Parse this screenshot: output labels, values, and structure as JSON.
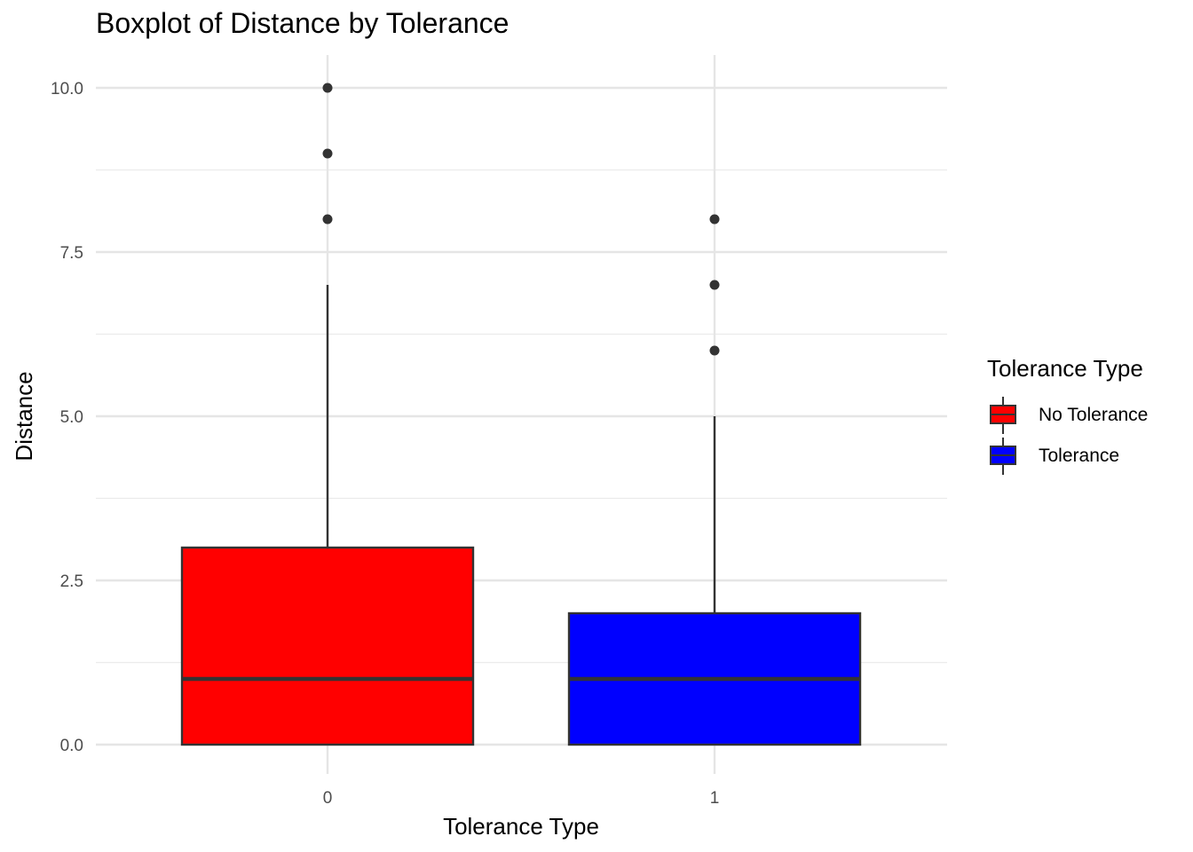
{
  "chart_data": {
    "type": "boxplot",
    "title": "Boxplot of Distance by Tolerance",
    "xlabel": "Tolerance Type",
    "ylabel": "Distance",
    "ylim": [
      -0.4,
      10.5
    ],
    "y_ticks": [
      "0.0",
      "2.5",
      "5.0",
      "7.5",
      "10.0"
    ],
    "y_tick_values": [
      0,
      2.5,
      5,
      7.5,
      10
    ],
    "categories": [
      "0",
      "1"
    ],
    "grid": true,
    "legend_placement": "right",
    "legend_title": "Tolerance Type",
    "series": [
      {
        "name": "No Tolerance",
        "category": "0",
        "color": "#ff0000",
        "min": 0,
        "q1": 0,
        "median": 1,
        "q3": 3,
        "max": 7,
        "outliers": [
          8,
          9,
          10
        ]
      },
      {
        "name": "Tolerance",
        "category": "1",
        "color": "#0000ff",
        "min": 0,
        "q1": 0,
        "median": 1,
        "q3": 2,
        "max": 5,
        "outliers": [
          6,
          7,
          8
        ]
      }
    ]
  }
}
